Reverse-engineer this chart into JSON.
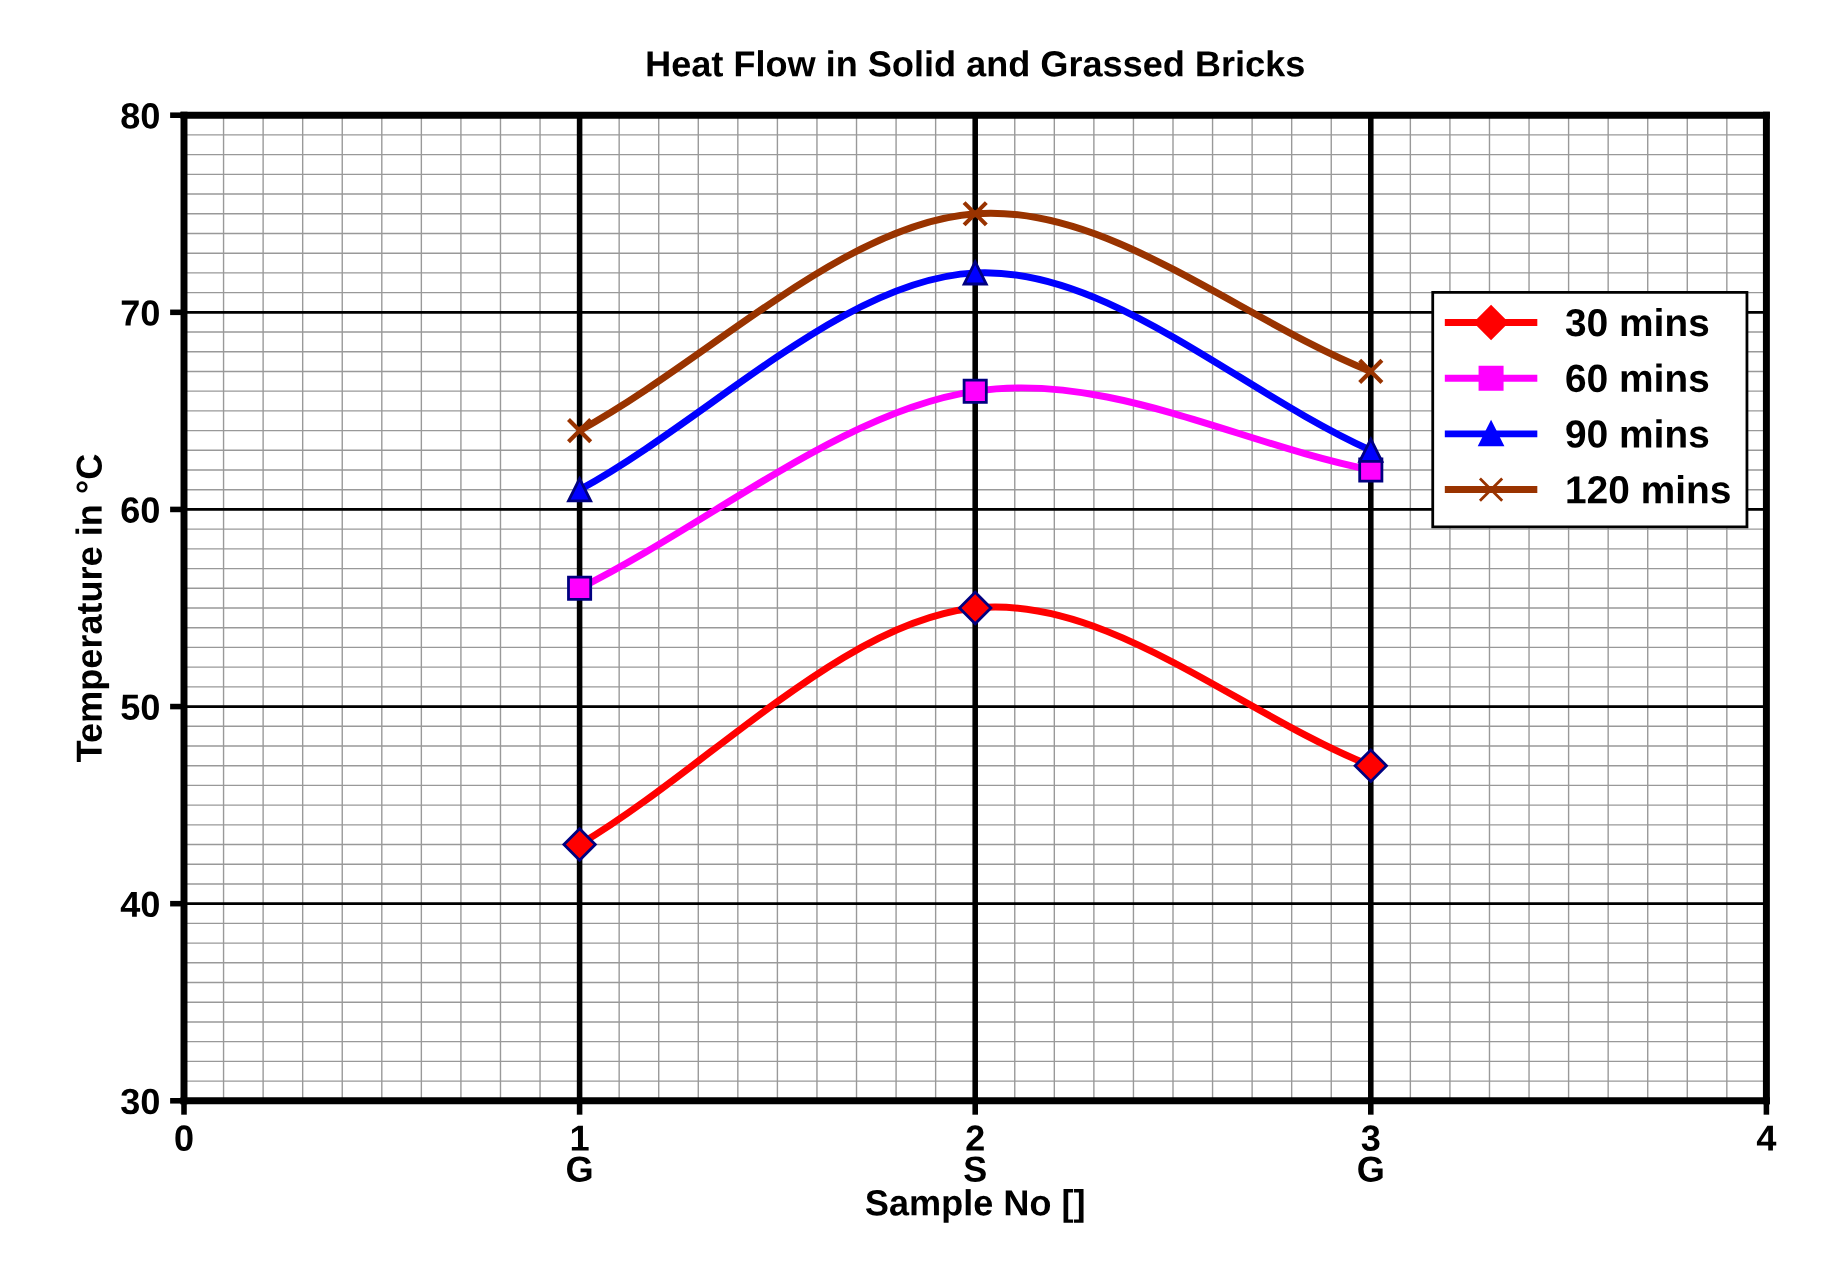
{
  "chart_data": {
    "type": "line",
    "title": "Heat Flow in Solid and Grassed Bricks",
    "xlabel": "Sample No []",
    "ylabel": "Temperature in °C",
    "x": [
      1,
      2,
      3
    ],
    "series": [
      {
        "name": "30 mins",
        "color": "#ff0000",
        "marker": "diamond",
        "values": [
          43,
          55,
          47
        ]
      },
      {
        "name": "60 mins",
        "color": "#ff00ff",
        "marker": "square",
        "values": [
          56,
          66,
          62
        ]
      },
      {
        "name": "90 mins",
        "color": "#0000ff",
        "marker": "triangle",
        "values": [
          61,
          72,
          63
        ]
      },
      {
        "name": "120 mins",
        "color": "#993300",
        "marker": "cross",
        "values": [
          64,
          75,
          67
        ]
      }
    ],
    "xlim": [
      0,
      4
    ],
    "xticks": [
      0,
      {
        "value": 1,
        "label": "1\nG"
      },
      {
        "value": 2,
        "label": "2\nS"
      },
      {
        "value": 3,
        "label": "3\nG"
      },
      4
    ],
    "ylim": [
      30,
      80
    ],
    "yticks": [
      30,
      40,
      50,
      60,
      70,
      80
    ],
    "grid": true,
    "legend": "right",
    "line_style": "solid"
  }
}
